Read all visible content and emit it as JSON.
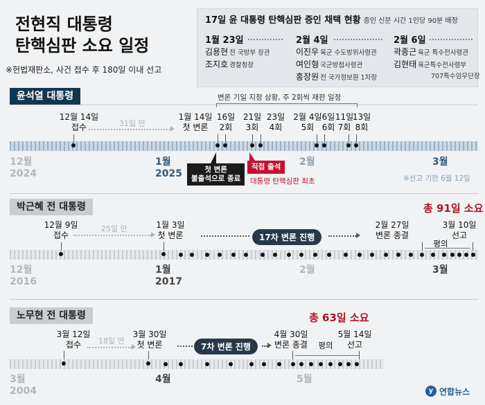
{
  "title": [
    "전현직 대통령",
    "탄핵심판 소요 일정"
  ],
  "note": "※헌법재판소, 사건 접수 후 180일 이내 선고",
  "witness": {
    "title": "17일 윤 대통령 탄핵심판 증인 채택 현황",
    "subtitle": "증인 신문 시간 1인당 90분 배정",
    "groups": [
      {
        "date": "1월 23일",
        "people": [
          {
            "name": "김용현",
            "role": "전 국방부 장관"
          },
          {
            "name": "조지호",
            "role": "경찰청장"
          }
        ]
      },
      {
        "date": "2월 4일",
        "people": [
          {
            "name": "이진우",
            "role": "육군 수도방위사령관"
          },
          {
            "name": "여인형",
            "role": "국군방첩사령관"
          },
          {
            "name": "홍장원",
            "role": "전 국가정보원 1차장"
          }
        ]
      },
      {
        "date": "2월 6일",
        "people": [
          {
            "name": "곽종근",
            "role": "육군 특수전사령관"
          },
          {
            "name": "김현태",
            "role": "육군특수전사령부"
          },
          {
            "name": "",
            "role": "707특수임무단장"
          }
        ]
      }
    ]
  },
  "yoon": {
    "label": "윤석열 대통령",
    "top_note": "변론 기일 지정 상황, 주 2회씩 재판 일정",
    "receipt": [
      "12월 14일",
      "접수"
    ],
    "gap": "31일 만",
    "first": [
      "1월 14일",
      "첫 변론"
    ],
    "sessions": [
      [
        "16일",
        "2회"
      ],
      [
        "21일",
        "3회"
      ],
      [
        "23일",
        "4회"
      ],
      [
        "2월 4일",
        "5회"
      ],
      [
        "6일",
        "6회"
      ],
      [
        "11일",
        "7회"
      ],
      [
        "13일",
        "8회"
      ]
    ],
    "months": [
      [
        "12월",
        "2024"
      ],
      [
        "1월",
        "2025"
      ],
      [
        "2월",
        ""
      ],
      [
        "3월",
        ""
      ]
    ],
    "callout_black": [
      "첫 변론",
      "불출석으로 종료"
    ],
    "callout_red": "직접 출석",
    "callout_red_note": "대통령 탄핵심판 최초",
    "deadline": "※선고 기한 6월 12일"
  },
  "park": {
    "label": "박근혜 전 대통령",
    "total": "총 91일 소요",
    "receipt": [
      "12월 9일",
      "접수"
    ],
    "gap": "25일 만",
    "first": [
      "1월 3일",
      "첫 변론"
    ],
    "pill": "17차 변론 진행",
    "end": [
      "2월 27일",
      "변론 종결"
    ],
    "deliberation": "평의",
    "verdict": [
      "3월 10일",
      "선고"
    ],
    "months": [
      [
        "12월",
        "2016"
      ],
      [
        "1월",
        "2017"
      ],
      [
        "2월",
        ""
      ],
      [
        "3월",
        ""
      ]
    ]
  },
  "roh": {
    "label": "노무현 전 대통령",
    "total": "총 63일 소요",
    "receipt": [
      "3월 12일",
      "접수"
    ],
    "gap": "18일 만",
    "first": [
      "3월 30일",
      "첫 변론"
    ],
    "pill": "7차 변론 진행",
    "end": [
      "4월 30일",
      "변론 종결"
    ],
    "deliberation": "평의",
    "verdict": [
      "5월 14일",
      "선고"
    ],
    "months": [
      [
        "3월",
        "2004"
      ],
      [
        "4월",
        ""
      ],
      [
        "5월",
        ""
      ]
    ]
  },
  "logo": {
    "symbol": "y",
    "text": "연합뉴스",
    "color": "#1e5f9a"
  },
  "colors": {
    "navy": "#123650",
    "red": "#c8102e",
    "band": "#9cb2c6"
  }
}
